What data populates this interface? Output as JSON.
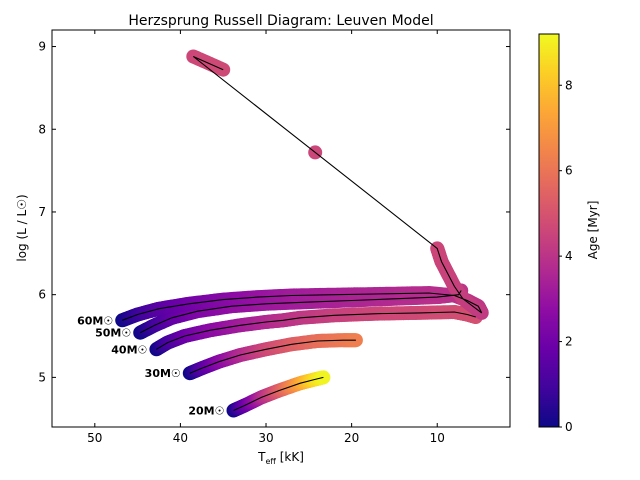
{
  "chart_data": {
    "type": "scatter",
    "title": "Herzsprung Russell Diagram: Leuven Model",
    "xlabel": "T",
    "xlabel_sub": "eff",
    "xlabel_unit": " [kK]",
    "ylabel": "log (L / L☉)",
    "colorbar_label": "Age [Myr]",
    "xlim": [
      55,
      1.5
    ],
    "ylim": [
      4.4,
      9.2
    ],
    "clim": [
      0,
      9.2
    ],
    "colormap": "plasma",
    "x_ticks": [
      50,
      40,
      30,
      20,
      10
    ],
    "y_ticks": [
      5,
      6,
      7,
      8,
      9
    ],
    "cbar_ticks": [
      0,
      2,
      4,
      6,
      8
    ],
    "grid": false,
    "series": [
      {
        "name": "20M☉",
        "label": "20M☉",
        "points": [
          [
            33.8,
            4.6,
            0.0
          ],
          [
            32.5,
            4.66,
            1.6
          ],
          [
            30.5,
            4.76,
            3.6
          ],
          [
            28.5,
            4.84,
            5.2
          ],
          [
            26.0,
            4.93,
            7.2
          ],
          [
            24.5,
            4.97,
            8.4
          ],
          [
            23.3,
            5.0,
            9.1
          ]
        ]
      },
      {
        "name": "30M☉",
        "label": "30M☉",
        "points": [
          [
            38.9,
            5.05,
            0.0
          ],
          [
            37.5,
            5.11,
            1.2
          ],
          [
            35.5,
            5.19,
            2.5
          ],
          [
            33.0,
            5.27,
            3.6
          ],
          [
            30.0,
            5.34,
            4.6
          ],
          [
            27.0,
            5.4,
            5.3
          ],
          [
            24.0,
            5.44,
            5.8
          ],
          [
            21.0,
            5.45,
            6.1
          ],
          [
            19.5,
            5.45,
            6.3
          ]
        ]
      },
      {
        "name": "40M☉",
        "label": "40M☉",
        "points": [
          [
            42.8,
            5.34,
            0.0
          ],
          [
            41.5,
            5.42,
            0.9
          ],
          [
            39.5,
            5.5,
            1.8
          ],
          [
            36.5,
            5.57,
            2.6
          ],
          [
            33.0,
            5.63,
            3.2
          ],
          [
            30.0,
            5.67,
            3.6
          ],
          [
            28.0,
            5.69,
            3.9
          ],
          [
            26.0,
            5.72,
            4.1
          ],
          [
            22.0,
            5.75,
            4.4
          ],
          [
            17.0,
            5.77,
            4.6
          ],
          [
            12.0,
            5.78,
            4.7
          ],
          [
            8.0,
            5.79,
            4.8
          ],
          [
            6.5,
            5.76,
            4.85
          ],
          [
            5.5,
            5.73,
            4.9
          ]
        ]
      },
      {
        "name": "50M☉",
        "label": "50M☉",
        "points": [
          [
            44.7,
            5.54,
            0.0
          ],
          [
            43.0,
            5.63,
            0.8
          ],
          [
            41.0,
            5.72,
            1.6
          ],
          [
            38.0,
            5.8,
            2.3
          ],
          [
            34.0,
            5.86,
            2.8
          ],
          [
            30.0,
            5.89,
            3.1
          ],
          [
            25.0,
            5.91,
            3.3
          ],
          [
            20.0,
            5.93,
            3.5
          ],
          [
            15.0,
            5.95,
            3.7
          ],
          [
            10.0,
            5.97,
            3.9
          ],
          [
            7.5,
            6.0,
            4.0
          ],
          [
            7.2,
            6.05,
            4.05
          ]
        ]
      },
      {
        "name": "60M☉",
        "label": "60M☉",
        "points": [
          [
            46.8,
            5.69,
            0.0
          ],
          [
            45.0,
            5.76,
            0.7
          ],
          [
            42.5,
            5.83,
            1.4
          ],
          [
            39.0,
            5.89,
            2.0
          ],
          [
            35.0,
            5.94,
            2.5
          ],
          [
            31.0,
            5.97,
            2.9
          ],
          [
            27.0,
            5.99,
            3.2
          ],
          [
            22.0,
            6.0,
            3.4
          ],
          [
            16.0,
            6.01,
            3.6
          ],
          [
            11.0,
            6.02,
            3.8
          ],
          [
            8.0,
            5.99,
            3.9
          ],
          [
            6.5,
            5.93,
            4.0
          ],
          [
            5.2,
            5.86,
            4.1
          ],
          [
            4.8,
            5.78,
            4.2
          ],
          [
            7.0,
            5.95,
            4.3
          ],
          [
            8.0,
            6.1,
            4.4
          ],
          [
            9.5,
            6.4,
            4.5
          ],
          [
            10.0,
            6.56,
            4.55
          ],
          [
            38.5,
            8.88,
            4.6
          ],
          [
            35.0,
            8.72,
            4.7
          ]
        ]
      }
    ]
  }
}
